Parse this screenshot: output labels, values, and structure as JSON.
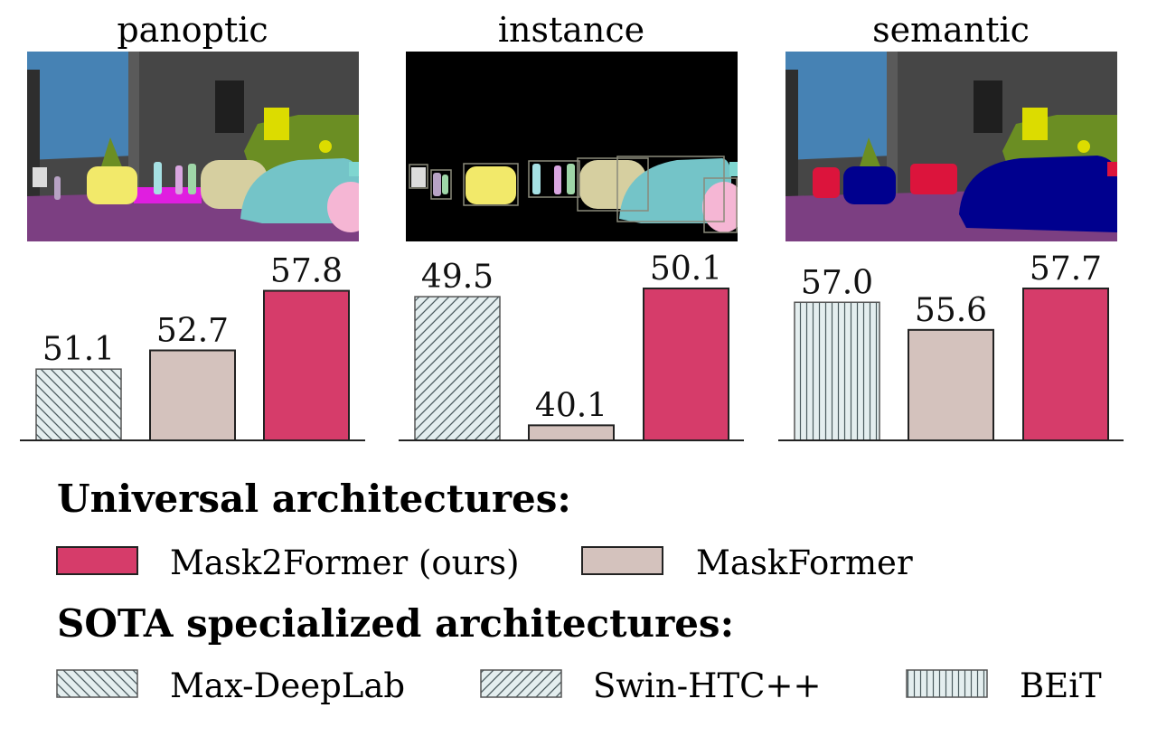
{
  "chart_data": [
    {
      "type": "bar",
      "title": "panoptic",
      "categories": [
        "Max-DeepLab",
        "MaskFormer",
        "Mask2Former (ours)"
      ],
      "values": [
        51.1,
        52.7,
        57.8
      ],
      "value_labels": [
        "51.1",
        "52.7",
        "57.8"
      ],
      "fills": [
        "backslash-hatch",
        "#d4c2bd",
        "#d63c6a"
      ],
      "ylim": [
        45,
        58
      ]
    },
    {
      "type": "bar",
      "title": "instance",
      "categories": [
        "Swin-HTC++",
        "MaskFormer",
        "Mask2Former (ours)"
      ],
      "values": [
        49.5,
        40.1,
        50.1
      ],
      "value_labels": [
        "49.5",
        "40.1",
        "50.1"
      ],
      "fills": [
        "slash-hatch",
        "#d4c2bd",
        "#d63c6a"
      ],
      "ylim": [
        39,
        50.1
      ]
    },
    {
      "type": "bar",
      "title": "semantic",
      "categories": [
        "BEiT",
        "MaskFormer",
        "Mask2Former (ours)"
      ],
      "values": [
        57.0,
        55.6,
        57.7
      ],
      "value_labels": [
        "57.0",
        "55.6",
        "57.7"
      ],
      "fills": [
        "vertical-hatch",
        "#d4c2bd",
        "#d63c6a"
      ],
      "ylim": [
        50,
        57.7
      ]
    }
  ],
  "legend": {
    "universal_title": "Universal architectures:",
    "universal_items": [
      {
        "label": "Mask2Former (ours)",
        "fill": "#d63c6a"
      },
      {
        "label": "MaskFormer",
        "fill": "#d4c2bd"
      }
    ],
    "sota_title": "SOTA specialized architectures:",
    "sota_items": [
      {
        "label": "Max-DeepLab",
        "pattern": "backslash-hatch"
      },
      {
        "label": "Swin-HTC++",
        "pattern": "slash-hatch"
      },
      {
        "label": "BEiT",
        "pattern": "vertical-hatch"
      }
    ]
  },
  "colors": {
    "mask2former": "#d63c6a",
    "maskformer": "#d4c2bd",
    "hatch_bg": "#e4eeef",
    "hatch_line": "#4a5a5e",
    "road": "#7c3f82",
    "sky": "#4682b4",
    "building": "#464646",
    "vegetation": "#6b8e23",
    "car_panoptic": "#74c4c8",
    "car_semantic": "#00008e",
    "person_semantic": "#dc143c",
    "instance_bg": "#000000"
  }
}
